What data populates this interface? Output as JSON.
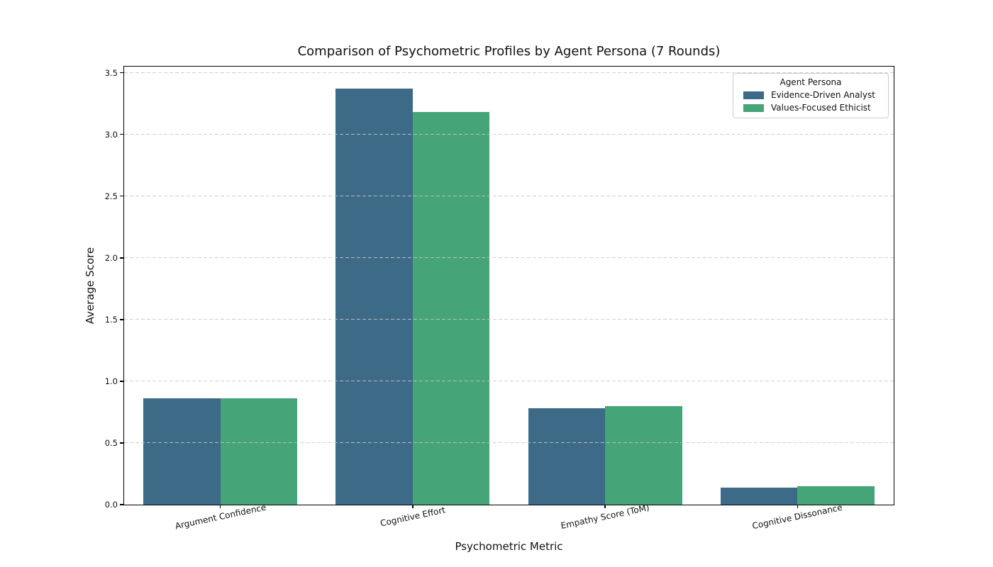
{
  "chart_data": {
    "type": "bar",
    "title": "Comparison of Psychometric Profiles by Agent Persona (7 Rounds)",
    "xlabel": "Psychometric Metric",
    "ylabel": "Average Score",
    "categories": [
      "Argument Confidence",
      "Cognitive Effort",
      "Empathy Score (ToM)",
      "Cognitive Dissonance"
    ],
    "series": [
      {
        "name": "Evidence-Driven Analyst",
        "color": "#3d6a87",
        "values": [
          0.86,
          3.37,
          0.78,
          0.14
        ]
      },
      {
        "name": "Values-Focused Ethicist",
        "color": "#45a478",
        "values": [
          0.86,
          3.18,
          0.8,
          0.15
        ]
      }
    ],
    "ylim": [
      0,
      3.55
    ],
    "yticks": [
      "0.0",
      "0.5",
      "1.0",
      "1.5",
      "2.0",
      "2.5",
      "3.0",
      "3.5"
    ],
    "legend": {
      "title": "Agent Persona",
      "position": "upper right"
    },
    "grid": {
      "axis": "y",
      "style": "dashed",
      "color": "#cccccc"
    },
    "bar_group_width": 0.8
  }
}
